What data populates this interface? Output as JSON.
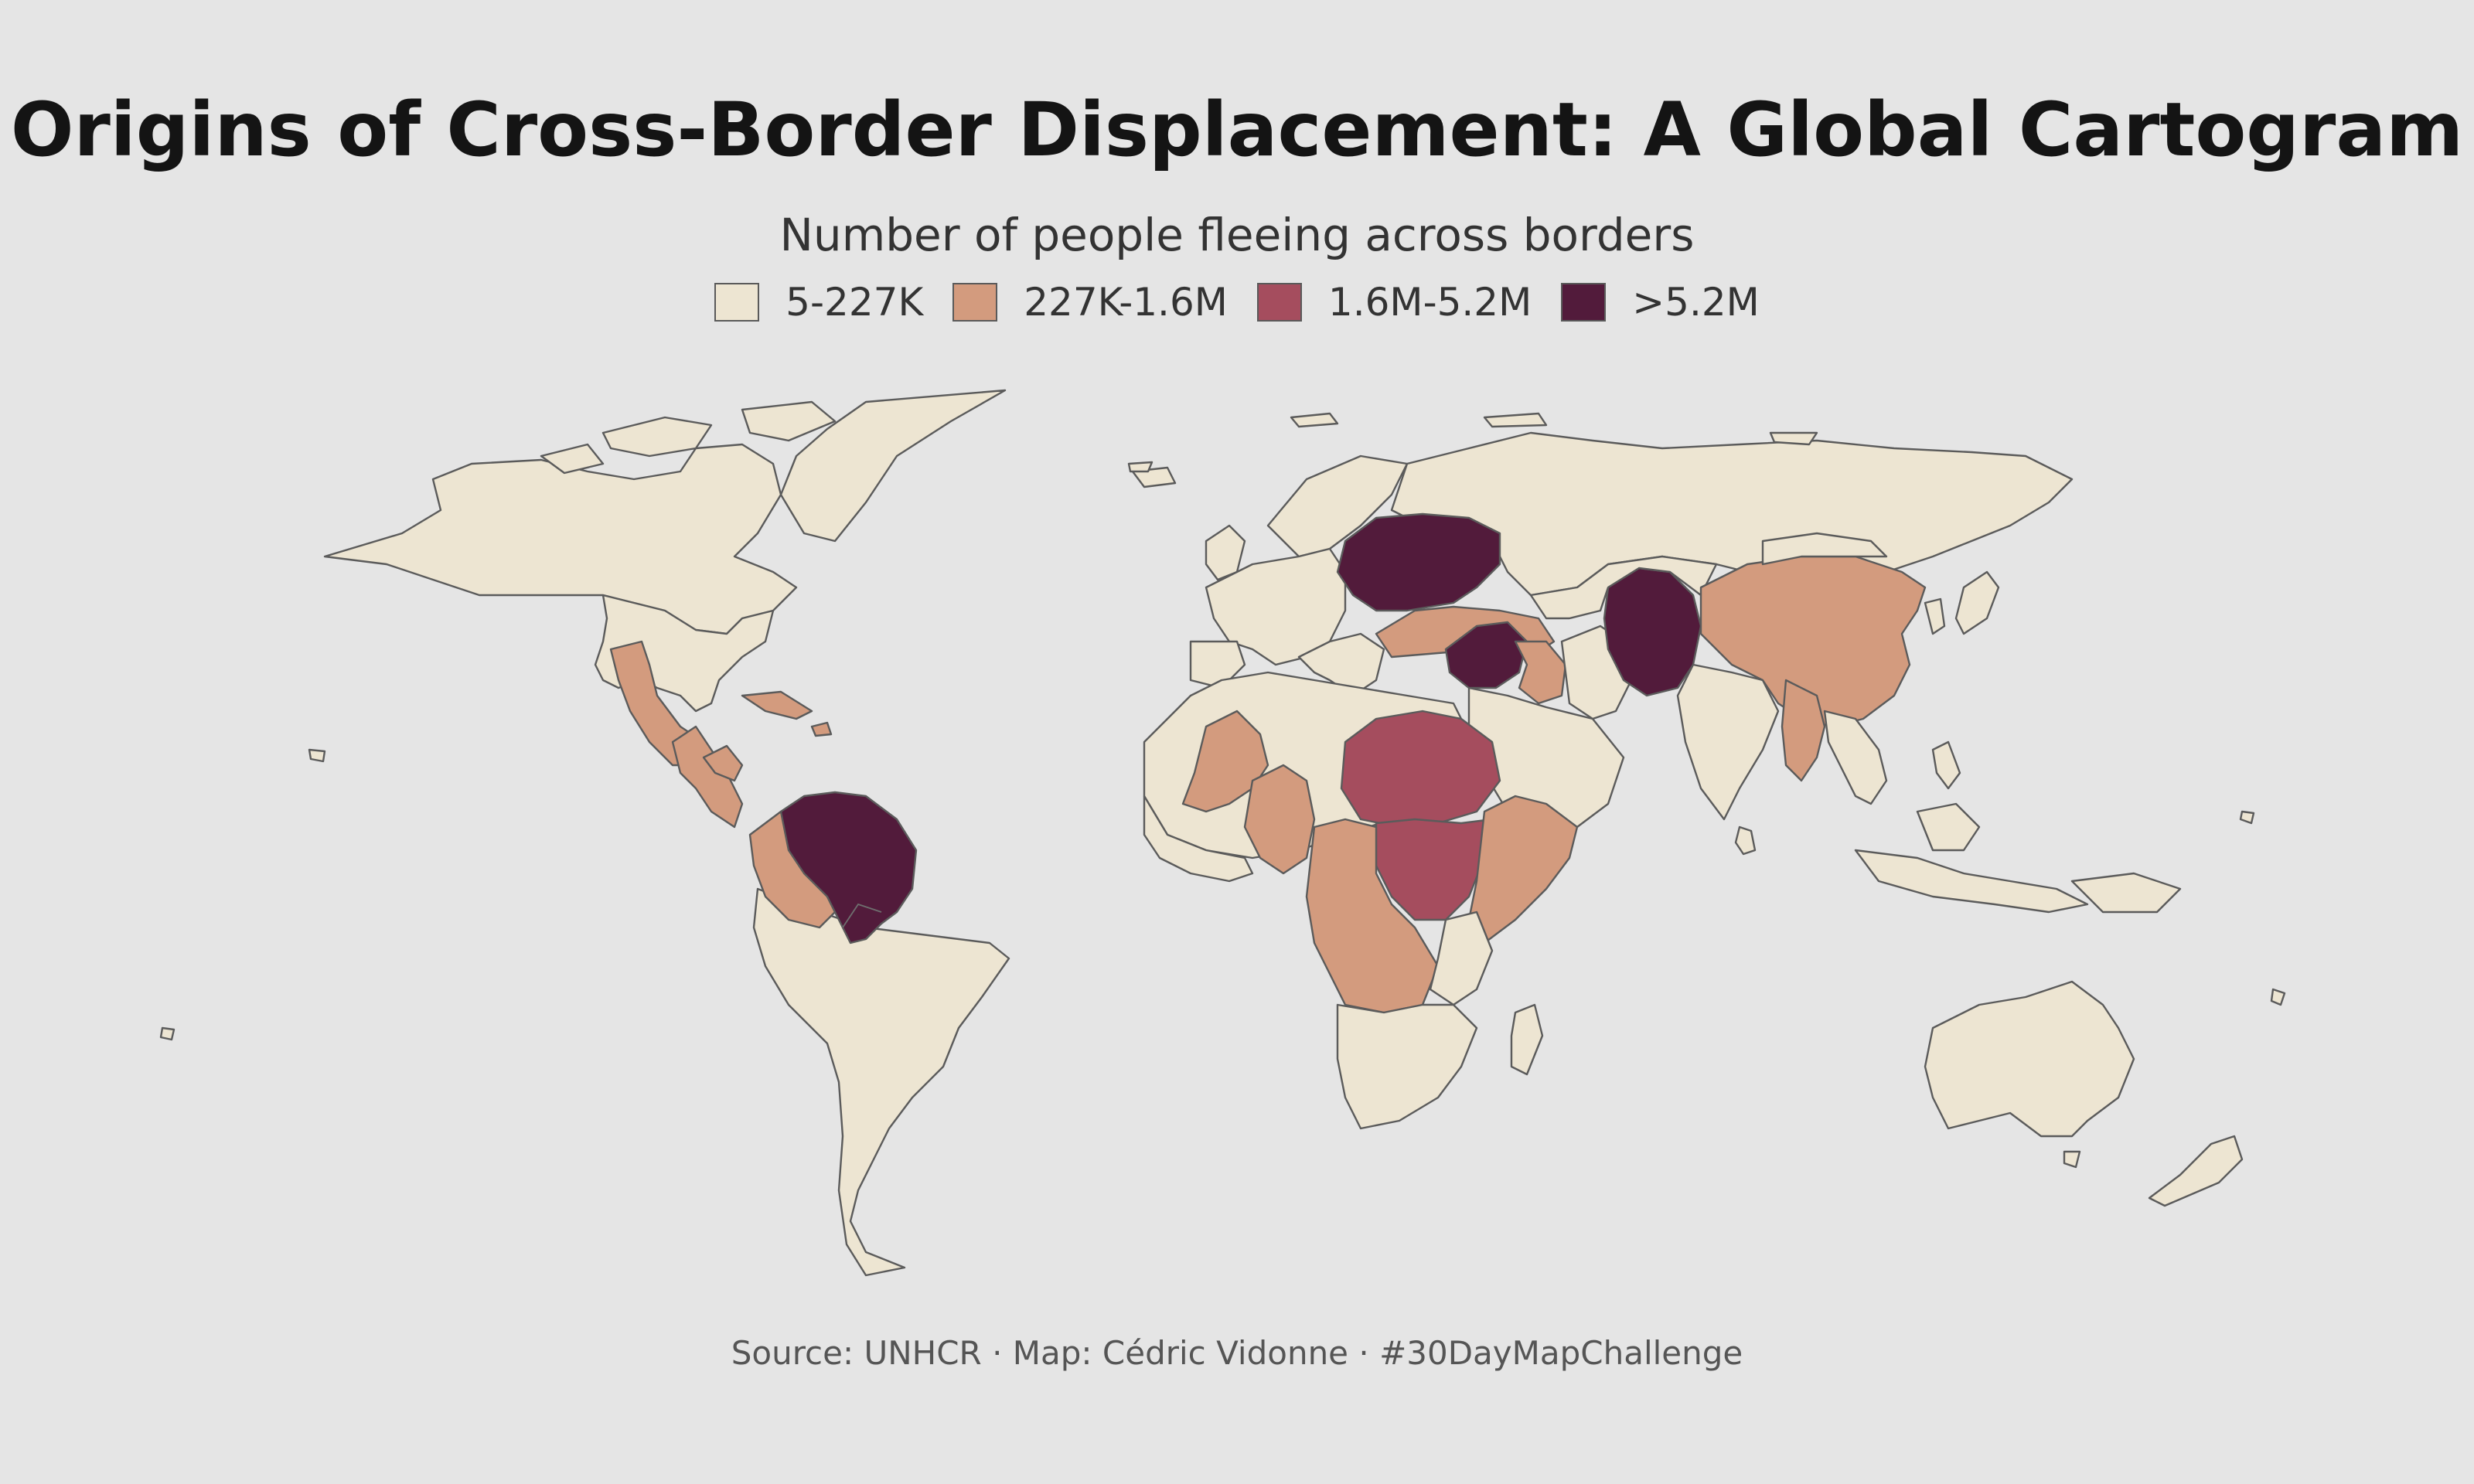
{
  "title": "Origins of Cross-Border Displacement: A Global Cartogram",
  "legend": {
    "title": "Number of people fleeing across borders",
    "items": [
      {
        "label": "5-227K",
        "color": "#ede5d2"
      },
      {
        "label": "227K-1.6M",
        "color": "#d39b7e"
      },
      {
        "label": "1.6M-5.2M",
        "color": "#a54d5e"
      },
      {
        "label": ">5.2M",
        "color": "#521b3b"
      }
    ]
  },
  "source": "Source: UNHCR · Map: Cédric Vidonne · #30DayMapChallenge",
  "colors": {
    "background": "#e5e5e5",
    "outline": "#5b5b5b"
  }
}
